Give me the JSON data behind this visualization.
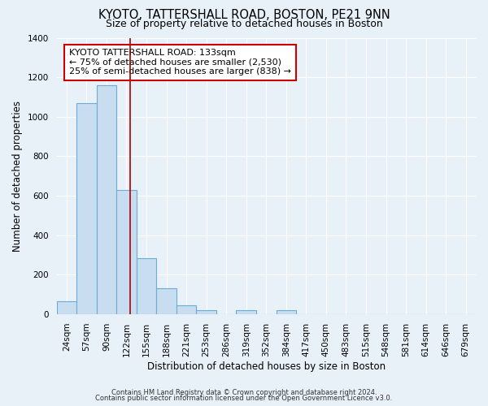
{
  "title": "KYOTO, TATTERSHALL ROAD, BOSTON, PE21 9NN",
  "subtitle": "Size of property relative to detached houses in Boston",
  "bar_labels": [
    "24sqm",
    "57sqm",
    "90sqm",
    "122sqm",
    "155sqm",
    "188sqm",
    "221sqm",
    "253sqm",
    "286sqm",
    "319sqm",
    "352sqm",
    "384sqm",
    "417sqm",
    "450sqm",
    "483sqm",
    "515sqm",
    "548sqm",
    "581sqm",
    "614sqm",
    "646sqm",
    "679sqm"
  ],
  "bar_values": [
    65,
    1070,
    1160,
    630,
    285,
    130,
    45,
    20,
    0,
    20,
    0,
    20,
    0,
    0,
    0,
    0,
    0,
    0,
    0,
    0,
    0
  ],
  "bar_color": "#c9ddf0",
  "bar_edgecolor": "#6aaed6",
  "bar_linewidth": 0.8,
  "vline_x": 3.18,
  "vline_color": "#aa0000",
  "vline_linewidth": 1.2,
  "annotation_line1": "KYOTO TATTERSHALL ROAD: 133sqm",
  "annotation_line2": "← 75% of detached houses are smaller (2,530)",
  "annotation_line3": "25% of semi-detached houses are larger (838) →",
  "xlabel": "Distribution of detached houses by size in Boston",
  "ylabel": "Number of detached properties",
  "ylim": [
    0,
    1400
  ],
  "yticks": [
    0,
    200,
    400,
    600,
    800,
    1000,
    1200,
    1400
  ],
  "footnote1": "Contains HM Land Registry data © Crown copyright and database right 2024.",
  "footnote2": "Contains public sector information licensed under the Open Government Licence v3.0.",
  "bg_color": "#e8f0f8",
  "plot_bg_color": "#e8f0f8",
  "title_fontsize": 10.5,
  "subtitle_fontsize": 9,
  "axis_label_fontsize": 8.5,
  "tick_fontsize": 7.5,
  "annotation_fontsize": 8,
  "footnote_fontsize": 6
}
